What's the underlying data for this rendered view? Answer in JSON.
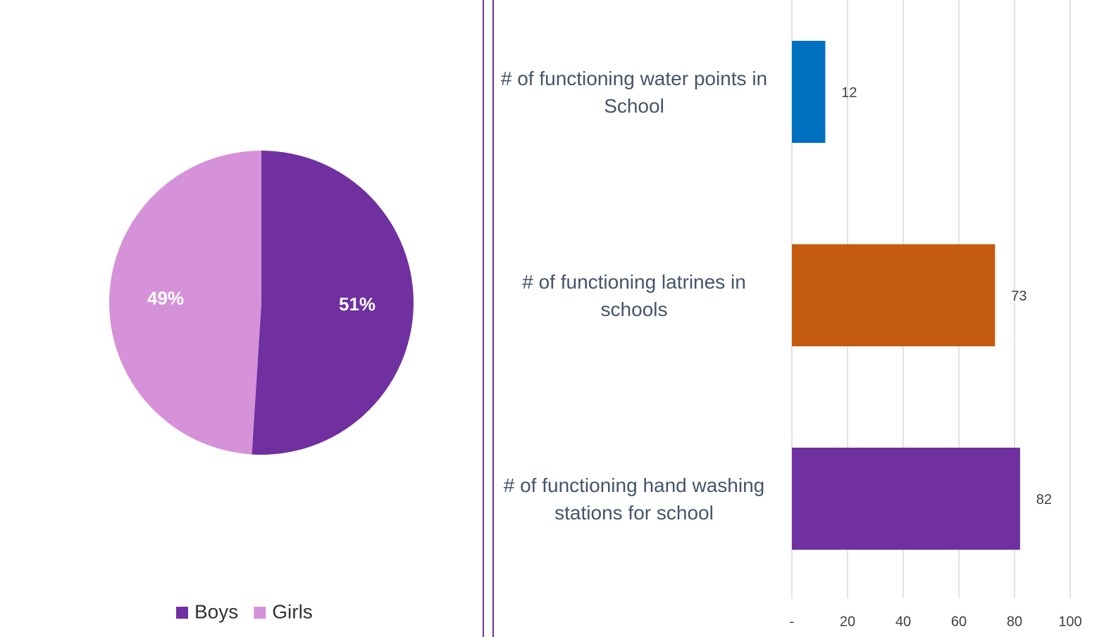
{
  "chart_data": [
    {
      "type": "pie",
      "categories": [
        "Boys",
        "Girls"
      ],
      "values": [
        51,
        49
      ],
      "value_labels": [
        "51%",
        "49%"
      ],
      "colors": [
        "#7030a0",
        "#d692d8"
      ],
      "legend": "bottom"
    },
    {
      "type": "bar",
      "orientation": "horizontal",
      "categories": [
        "# of functioning water points in School",
        "# of functioning latrines in schools",
        "# of functioning hand washing stations for school"
      ],
      "values": [
        12,
        73,
        82
      ],
      "colors": [
        "#0070c0",
        "#c55a11",
        "#7030a0"
      ],
      "xlim": [
        0,
        100
      ],
      "xticks": [
        {
          "value": 0,
          "label": "-"
        },
        20,
        40,
        60,
        80,
        100
      ],
      "grid": true
    }
  ]
}
